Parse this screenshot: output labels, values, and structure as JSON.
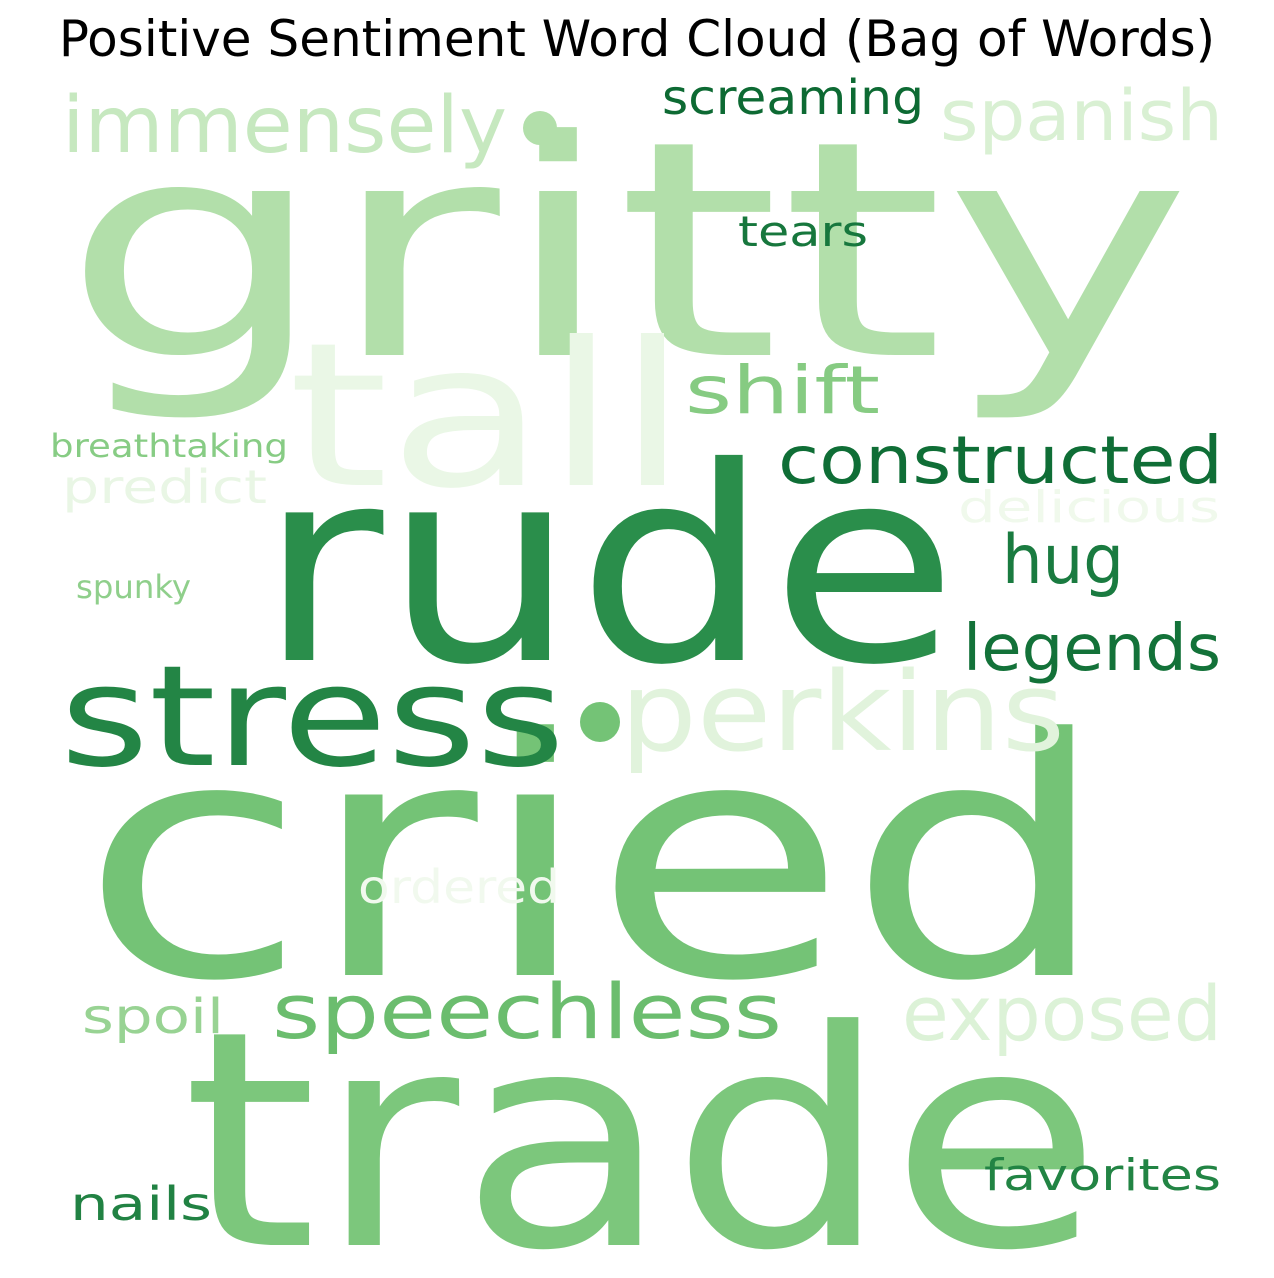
{
  "chart_data": {
    "type": "wordcloud",
    "title": "Positive Sentiment Word Cloud (Bag of Words)",
    "words": [
      {
        "text": "gritty",
        "color": "#b2dfaa"
      },
      {
        "text": "tall",
        "color": "#eaf7e6"
      },
      {
        "text": "rude",
        "color": "#2a8e4b"
      },
      {
        "text": "cried",
        "color": "#74c376"
      },
      {
        "text": "trade",
        "color": "#7cc77c"
      },
      {
        "text": "stress",
        "color": "#238545"
      },
      {
        "text": "perkins",
        "color": "#e1f3dc"
      },
      {
        "text": "immensely",
        "color": "#c6e8bf"
      },
      {
        "text": "spanish",
        "color": "#d9f0d3"
      },
      {
        "text": "screaming",
        "color": "#0d6a33"
      },
      {
        "text": "tears",
        "color": "#17773d"
      },
      {
        "text": "shift",
        "color": "#86cb82"
      },
      {
        "text": "constructed",
        "color": "#0f6e36"
      },
      {
        "text": "breathtaking",
        "color": "#87cc84"
      },
      {
        "text": "predict",
        "color": "#e9f6e5"
      },
      {
        "text": "delicious",
        "color": "#f0f9ec"
      },
      {
        "text": "hug",
        "color": "#1a7b40"
      },
      {
        "text": "legends",
        "color": "#137239"
      },
      {
        "text": "spunky",
        "color": "#8fcf8b"
      },
      {
        "text": "speechless",
        "color": "#6bbd6e"
      },
      {
        "text": "exposed",
        "color": "#dcf2d7"
      },
      {
        "text": "ordered",
        "color": "#f1f9ee"
      },
      {
        "text": "spoil",
        "color": "#98d393"
      },
      {
        "text": "nails",
        "color": "#218243"
      },
      {
        "text": "favorites",
        "color": "#228444"
      }
    ]
  }
}
